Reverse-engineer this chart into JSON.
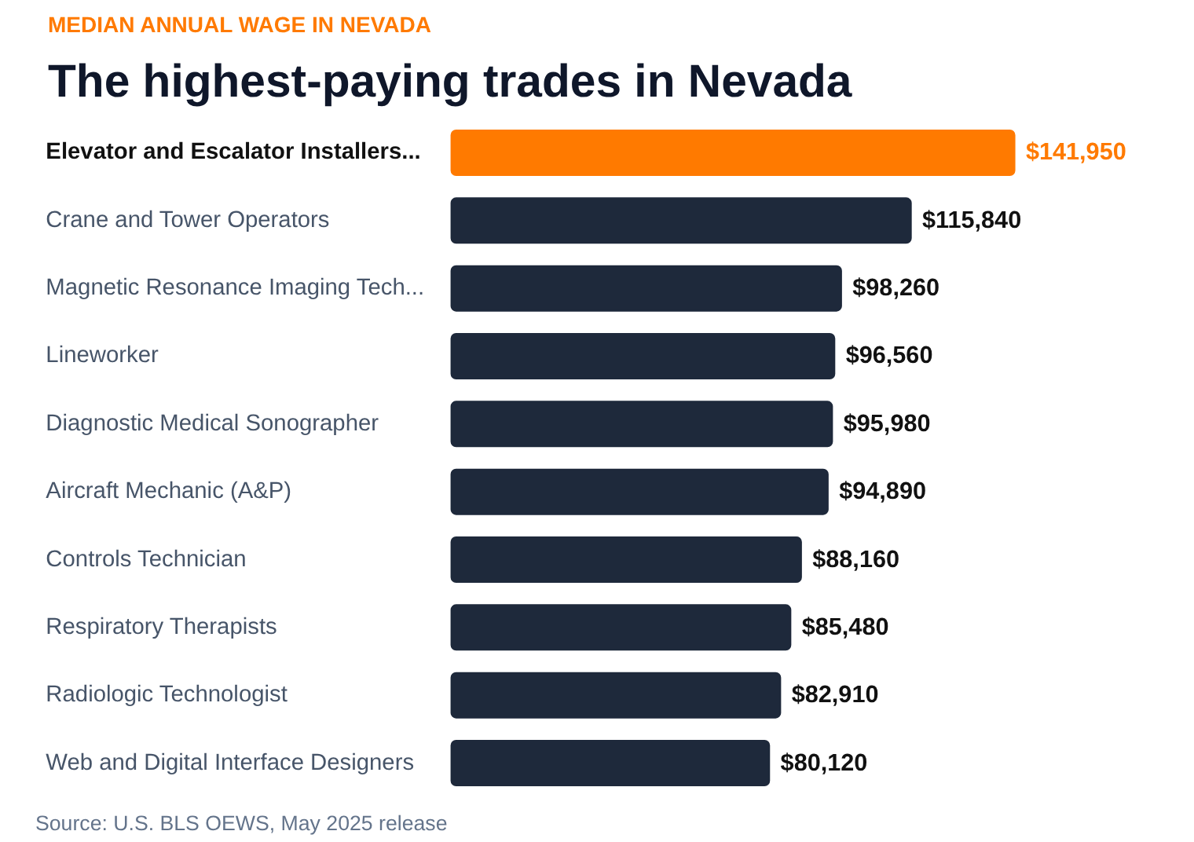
{
  "chart_data": {
    "type": "bar",
    "orientation": "horizontal",
    "subtitle": "MEDIAN ANNUAL WAGE IN NEVADA",
    "title": "The highest-paying trades in Nevada",
    "categories": [
      "Elevator and Escalator Installers...",
      "Crane and Tower Operators",
      "Magnetic Resonance Imaging Tech...",
      "Lineworker",
      "Diagnostic Medical Sonographer",
      "Aircraft Mechanic (A&P)",
      "Controls Technician",
      "Respiratory Therapists",
      "Radiologic Technologist",
      "Web and Digital Interface Designers"
    ],
    "values": [
      141950,
      115840,
      98260,
      96560,
      95980,
      94890,
      88160,
      85480,
      82910,
      80120
    ],
    "value_labels": [
      "$141,950",
      "$115,840",
      "$98,260",
      "$96,560",
      "$95,980",
      "$94,890",
      "$88,160",
      "$85,480",
      "$82,910",
      "$80,120"
    ],
    "colors": [
      "#ff7a00",
      "#1e293b",
      "#1e293b",
      "#1e293b",
      "#1e293b",
      "#1e293b",
      "#1e293b",
      "#1e293b",
      "#1e293b",
      "#1e293b"
    ],
    "annotations": [
      "Source: U.S. BLS OEWS, May 2025 release"
    ]
  }
}
